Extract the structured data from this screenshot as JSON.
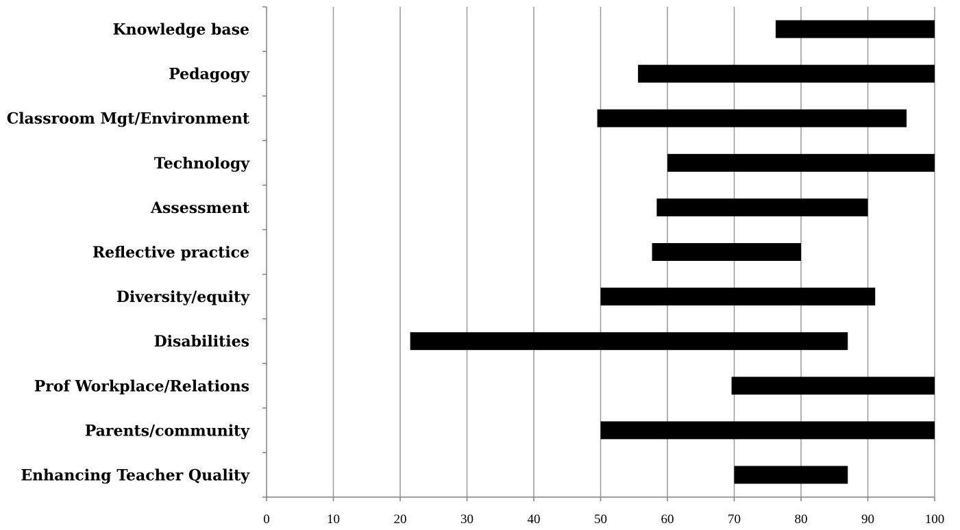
{
  "chart_data": {
    "type": "bar",
    "orientation": "horizontal",
    "style": "floating-range",
    "categories": [
      "Knowledge base",
      "Pedagogy",
      "Classroom Mgt/Environment",
      "Technology",
      "Assessment",
      "Reflective practice",
      "Diversity/equity",
      "Disabilities",
      "Prof Workplace/Relations",
      "Parents/community",
      "Enhancing Teacher Quality"
    ],
    "series": [
      {
        "ranges": [
          [
            76.2,
            100
          ],
          [
            55.6,
            100
          ],
          [
            49.5,
            95.8
          ],
          [
            60,
            100
          ],
          [
            58.4,
            90
          ],
          [
            57.7,
            80
          ],
          [
            50,
            91.1
          ],
          [
            21.5,
            87
          ],
          [
            69.6,
            100
          ],
          [
            50,
            100
          ],
          [
            70,
            87
          ]
        ]
      }
    ],
    "xlim": [
      0,
      100
    ],
    "xticks": [
      "0",
      "10",
      "20",
      "30",
      "40",
      "50",
      "60",
      "70",
      "80",
      "90",
      "100"
    ],
    "grid": "vertical",
    "legend": "none",
    "bar_color": "#000000",
    "grid_color": "#999999",
    "title": "",
    "xlabel": "",
    "ylabel": ""
  }
}
